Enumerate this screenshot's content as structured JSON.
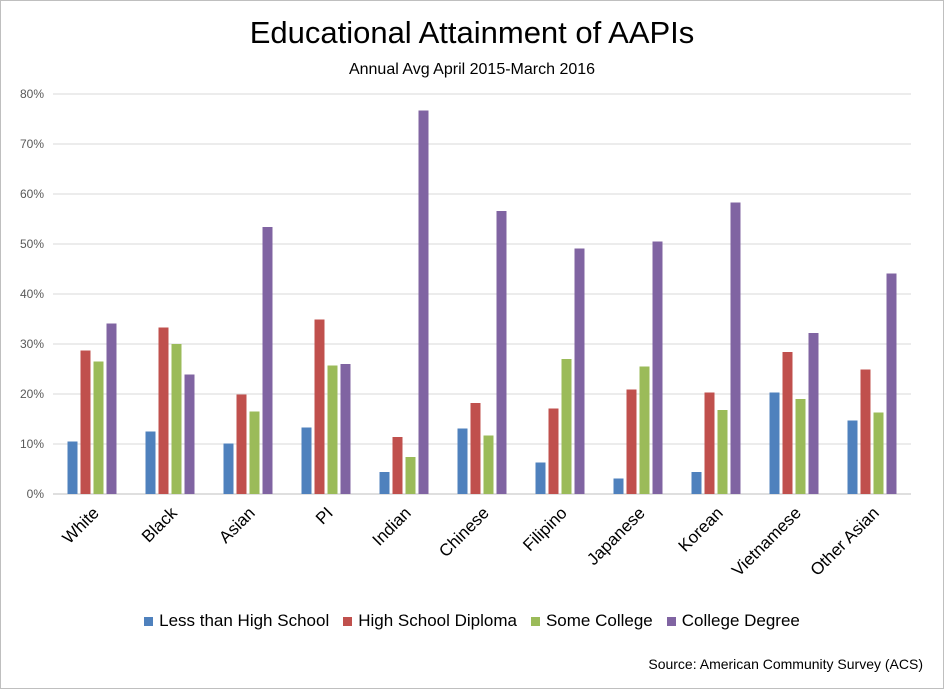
{
  "chart_data": {
    "type": "bar",
    "title": "Educational Attainment of AAPIs",
    "subtitle": "Annual Avg April 2015-March 2016",
    "source": "Source: American Community Survey (ACS)",
    "xlabel": "",
    "ylabel": "",
    "ylim": [
      0,
      80
    ],
    "yticks": [
      "0%",
      "10%",
      "20%",
      "30%",
      "40%",
      "50%",
      "60%",
      "70%",
      "80%"
    ],
    "grid": true,
    "legend_position": "bottom",
    "categories": [
      "White",
      "Black",
      "Asian",
      "PI",
      "Indian",
      "Chinese",
      "Filipino",
      "Japanese",
      "Korean",
      "Vietnamese",
      "Other Asian"
    ],
    "series": [
      {
        "name": "Less than High School",
        "color": "#4f81bd",
        "values": [
          10.5,
          12.5,
          10.1,
          13.3,
          4.4,
          13.1,
          6.3,
          3.1,
          4.4,
          20.3,
          14.7
        ]
      },
      {
        "name": "High School Diploma",
        "color": "#c0504d",
        "values": [
          28.7,
          33.3,
          19.9,
          34.9,
          11.4,
          18.2,
          17.1,
          20.9,
          20.3,
          28.4,
          24.9
        ]
      },
      {
        "name": "Some College",
        "color": "#9bbb59",
        "values": [
          26.5,
          30.0,
          16.5,
          25.7,
          7.4,
          11.7,
          27.0,
          25.5,
          16.8,
          19.0,
          16.3
        ]
      },
      {
        "name": "College Degree",
        "color": "#8064a2",
        "values": [
          34.1,
          23.9,
          53.4,
          26.0,
          76.7,
          56.6,
          49.1,
          50.5,
          58.3,
          32.2,
          44.1
        ]
      }
    ]
  }
}
